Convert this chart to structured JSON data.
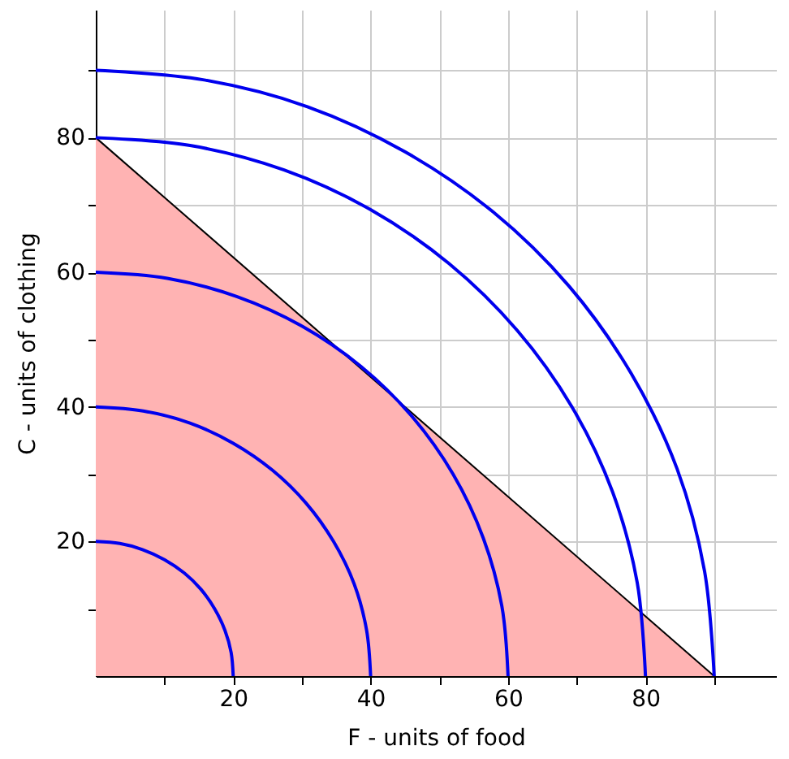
{
  "chart_data": {
    "type": "line",
    "xlabel": "F - units of food",
    "ylabel": "C - units of clothing",
    "xlim": [
      0,
      99
    ],
    "ylim": [
      0,
      99
    ],
    "xticks": [
      {
        "value": 10,
        "label": null
      },
      20,
      {
        "value": 30,
        "label": null
      },
      40,
      {
        "value": 50,
        "label": null
      },
      60,
      {
        "value": 70,
        "label": null
      },
      80,
      {
        "value": 90,
        "label": null
      }
    ],
    "yticks": [
      {
        "value": 10,
        "label": null
      },
      20,
      {
        "value": 30,
        "label": null
      },
      40,
      {
        "value": 50,
        "label": null
      },
      60,
      {
        "value": 70,
        "label": null
      },
      80,
      {
        "value": 90,
        "label": null
      }
    ],
    "grid": true,
    "marker": "none",
    "line_style": "solid",
    "series": [
      {
        "type": "area",
        "color": "#ffb3b3",
        "x": [
          0,
          90
        ],
        "values": [
          80,
          0
        ]
      },
      {
        "color": "#0000ee",
        "x": [
          20,
          19.7,
          18.8,
          17.3,
          15.3,
          12.9,
          10,
          6.8,
          3.5,
          0
        ],
        "values": [
          0,
          3.5,
          6.8,
          10,
          12.9,
          15.3,
          17.3,
          18.8,
          19.7,
          20
        ]
      },
      {
        "color": "#0000ee",
        "x": [
          40,
          39.4,
          37.6,
          34.6,
          30.6,
          25.7,
          20,
          13.7,
          6.9,
          0
        ],
        "values": [
          0,
          6.9,
          13.7,
          20,
          25.7,
          30.6,
          34.6,
          37.6,
          39.4,
          40
        ]
      },
      {
        "color": "#0000ee",
        "x": [
          60,
          59.1,
          56.4,
          52,
          46,
          38.6,
          30,
          20.5,
          10.4,
          0
        ],
        "values": [
          0,
          10.4,
          20.5,
          30,
          38.6,
          46,
          52,
          56.4,
          59.1,
          60
        ]
      },
      {
        "color": "#0000ee",
        "x": [
          80,
          78.8,
          75.2,
          69.3,
          61.3,
          51.4,
          40,
          27.4,
          13.9,
          0
        ],
        "values": [
          0,
          13.9,
          27.4,
          40,
          51.4,
          61.3,
          69.3,
          75.2,
          78.8,
          80
        ]
      },
      {
        "color": "#0000ee",
        "x": [
          90,
          88.6,
          84.6,
          77.9,
          68.9,
          57.9,
          45,
          30.8,
          15.6,
          0
        ],
        "values": [
          0,
          15.6,
          30.8,
          45,
          57.9,
          68.9,
          77.9,
          84.6,
          88.6,
          90
        ]
      }
    ]
  }
}
